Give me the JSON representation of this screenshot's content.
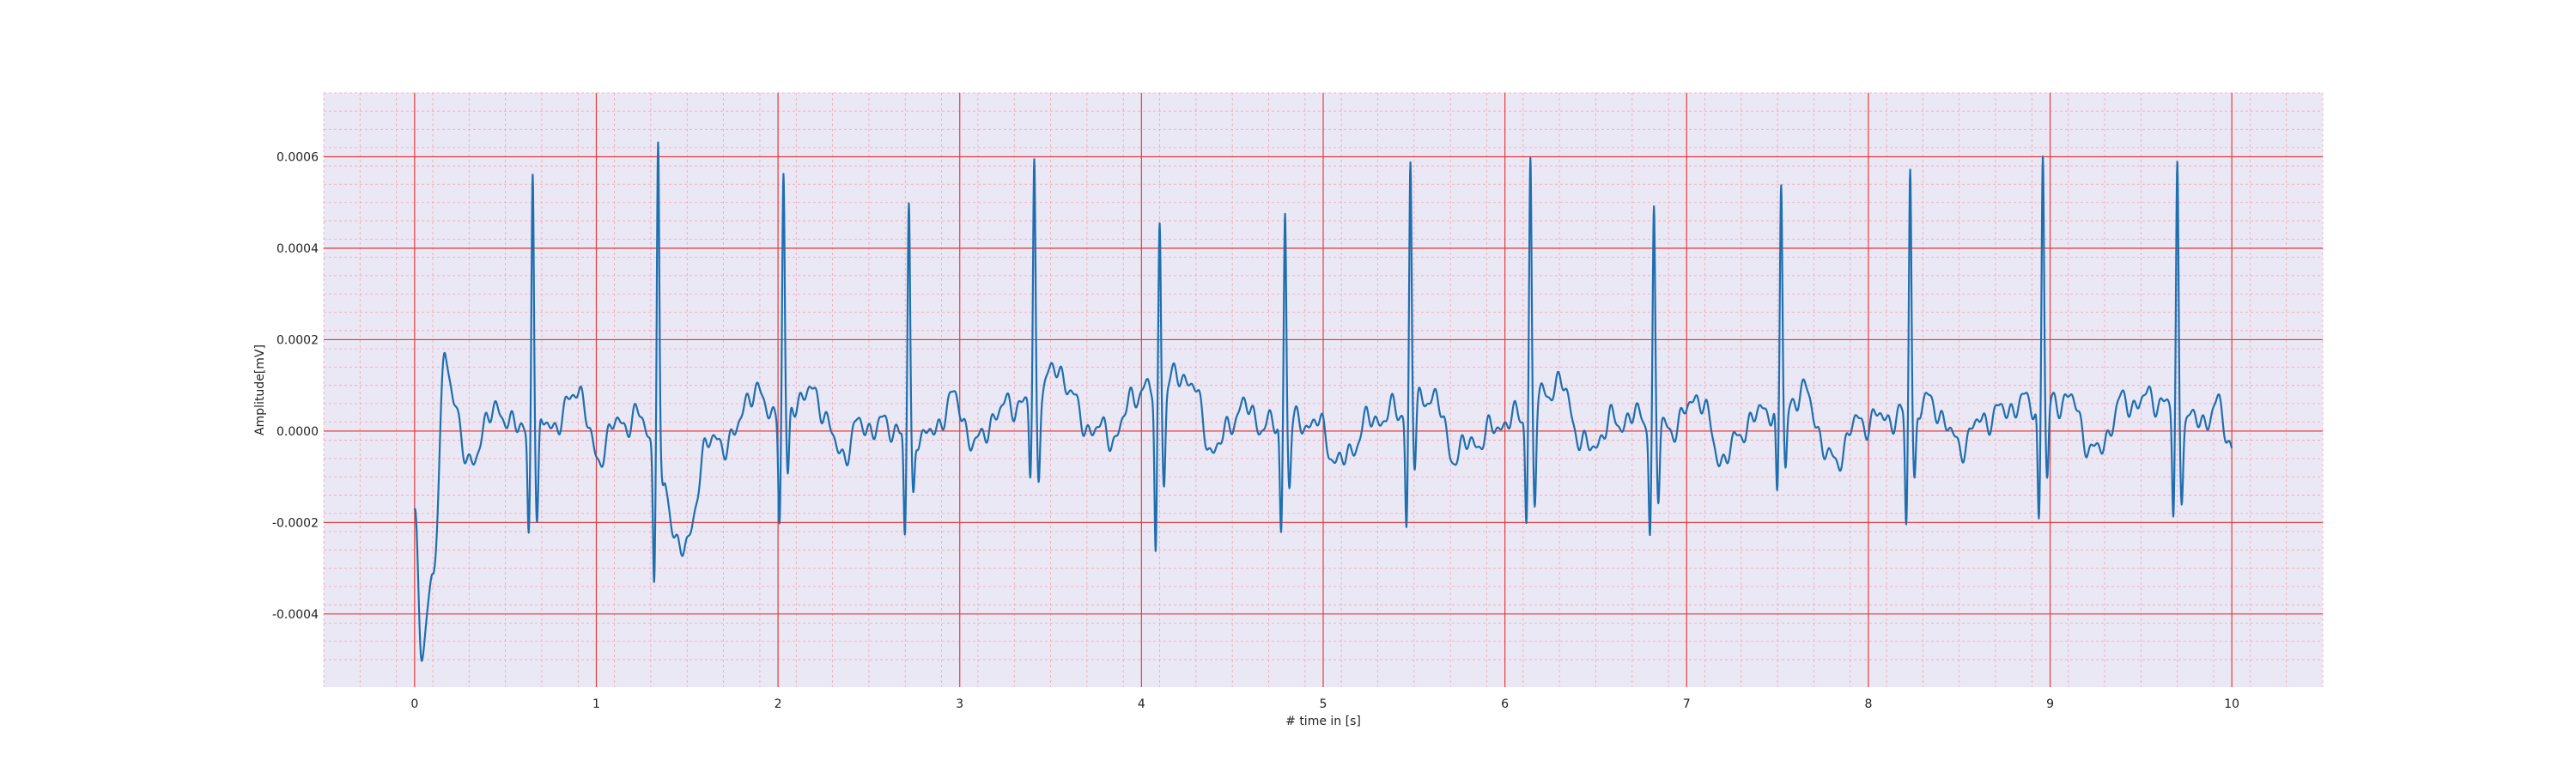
{
  "chart_data": {
    "type": "line",
    "title": "",
    "xlabel": "# time in [s]",
    "ylabel": "Amplitude[mV]",
    "xlim": [
      -0.5,
      10.5
    ],
    "ylim": [
      -0.00056,
      0.00074
    ],
    "xticks": [
      0,
      1,
      2,
      3,
      4,
      5,
      6,
      7,
      8,
      9,
      10
    ],
    "xtick_labels": [
      "0",
      "1",
      "2",
      "3",
      "4",
      "5",
      "6",
      "7",
      "8",
      "9",
      "10"
    ],
    "yticks": [
      -0.0004,
      -0.0002,
      0.0,
      0.0002,
      0.0004,
      0.0006
    ],
    "ytick_labels": [
      "-0.0004",
      "-0.0002",
      "0.0000",
      "0.0002",
      "0.0004",
      "0.0006"
    ],
    "grid": true,
    "minor_grid": true,
    "legend": "none",
    "background_color": "#eae8f4",
    "major_grid_color": "#e83c3c",
    "minor_grid_color": "#f2a4b0",
    "line_color": "#1f6fb0",
    "series": [
      {
        "beats": [
          0.65,
          1.34,
          2.03,
          2.72,
          3.41,
          4.1,
          4.79,
          5.48,
          6.14,
          6.82,
          7.52,
          8.23,
          8.96,
          9.7
        ],
        "r_peaks": [
          0.00058,
          0.000685,
          0.000515,
          0.00049,
          0.00053,
          0.0004,
          0.00048,
          0.000555,
          0.00056,
          0.000465,
          0.0005,
          0.00056,
          0.00057,
          0.000555
        ],
        "q_dips": [
          -0.00022,
          -0.00028,
          -0.00023,
          -0.00024,
          -0.00016,
          -0.00034,
          -0.00023,
          -0.00024,
          -0.00022,
          -0.00023,
          -0.00019,
          -0.00024,
          -0.00024,
          -0.00023
        ],
        "s_dips": [
          -0.00022,
          -5e-05,
          -0.00015,
          -0.00014,
          -0.00016,
          -0.00018,
          -0.00013,
          -0.00013,
          -0.00021,
          -0.00017,
          -0.00013,
          -0.00014,
          -0.00016,
          -0.00016
        ],
        "baseline_points": [
          [
            0.0,
            -0.00019
          ],
          [
            0.04,
            -0.0005
          ],
          [
            0.1,
            -0.0003
          ],
          [
            0.17,
            0.00015
          ],
          [
            0.22,
            7e-05
          ],
          [
            0.3,
            -9e-05
          ],
          [
            0.4,
            3e-05
          ],
          [
            0.5,
            4e-05
          ],
          [
            0.57,
            0.0
          ],
          [
            0.8,
            2e-05
          ],
          [
            0.9,
            0.0001
          ],
          [
            1.0,
            -6e-05
          ],
          [
            1.1,
            1e-05
          ],
          [
            1.22,
            3e-05
          ],
          [
            1.5,
            -0.00026
          ],
          [
            1.6,
            -3e-05
          ],
          [
            1.75,
            -2e-05
          ],
          [
            1.85,
            9e-05
          ],
          [
            1.95,
            5e-05
          ],
          [
            2.2,
            8e-05
          ],
          [
            2.35,
            -5e-05
          ],
          [
            2.45,
            1e-05
          ],
          [
            2.6,
            1e-05
          ],
          [
            2.85,
            -1e-05
          ],
          [
            2.95,
            7e-05
          ],
          [
            3.1,
            -3e-05
          ],
          [
            3.2,
            4e-05
          ],
          [
            3.3,
            6e-05
          ],
          [
            3.55,
            0.00013
          ],
          [
            3.7,
            1e-05
          ],
          [
            3.85,
            -1e-05
          ],
          [
            3.98,
            9e-05
          ],
          [
            4.25,
            0.00012
          ],
          [
            4.4,
            -4e-05
          ],
          [
            4.55,
            5e-05
          ],
          [
            4.7,
            1e-05
          ],
          [
            4.95,
            2e-05
          ],
          [
            5.1,
            -7e-05
          ],
          [
            5.25,
            2e-05
          ],
          [
            5.38,
            4e-05
          ],
          [
            5.6,
            8e-05
          ],
          [
            5.72,
            -5e-05
          ],
          [
            5.85,
            -2e-05
          ],
          [
            6.0,
            2e-05
          ],
          [
            6.3,
            0.0001
          ],
          [
            6.45,
            -4e-05
          ],
          [
            6.6,
            2e-05
          ],
          [
            6.72,
            3e-05
          ],
          [
            6.95,
            1e-05
          ],
          [
            7.05,
            8e-05
          ],
          [
            7.2,
            -6e-05
          ],
          [
            7.35,
            2e-05
          ],
          [
            7.44,
            5e-05
          ],
          [
            7.65,
            8e-05
          ],
          [
            7.8,
            -7e-05
          ],
          [
            7.95,
            2e-05
          ],
          [
            8.12,
            3e-05
          ],
          [
            8.35,
            6e-05
          ],
          [
            8.5,
            -3e-05
          ],
          [
            8.65,
            3e-05
          ],
          [
            8.85,
            6e-05
          ],
          [
            9.1,
            7e-05
          ],
          [
            9.25,
            -5e-05
          ],
          [
            9.4,
            6e-05
          ],
          [
            9.58,
            7e-05
          ],
          [
            9.82,
            2e-05
          ],
          [
            9.92,
            5e-05
          ],
          [
            10.0,
            -3e-05
          ]
        ]
      }
    ]
  }
}
